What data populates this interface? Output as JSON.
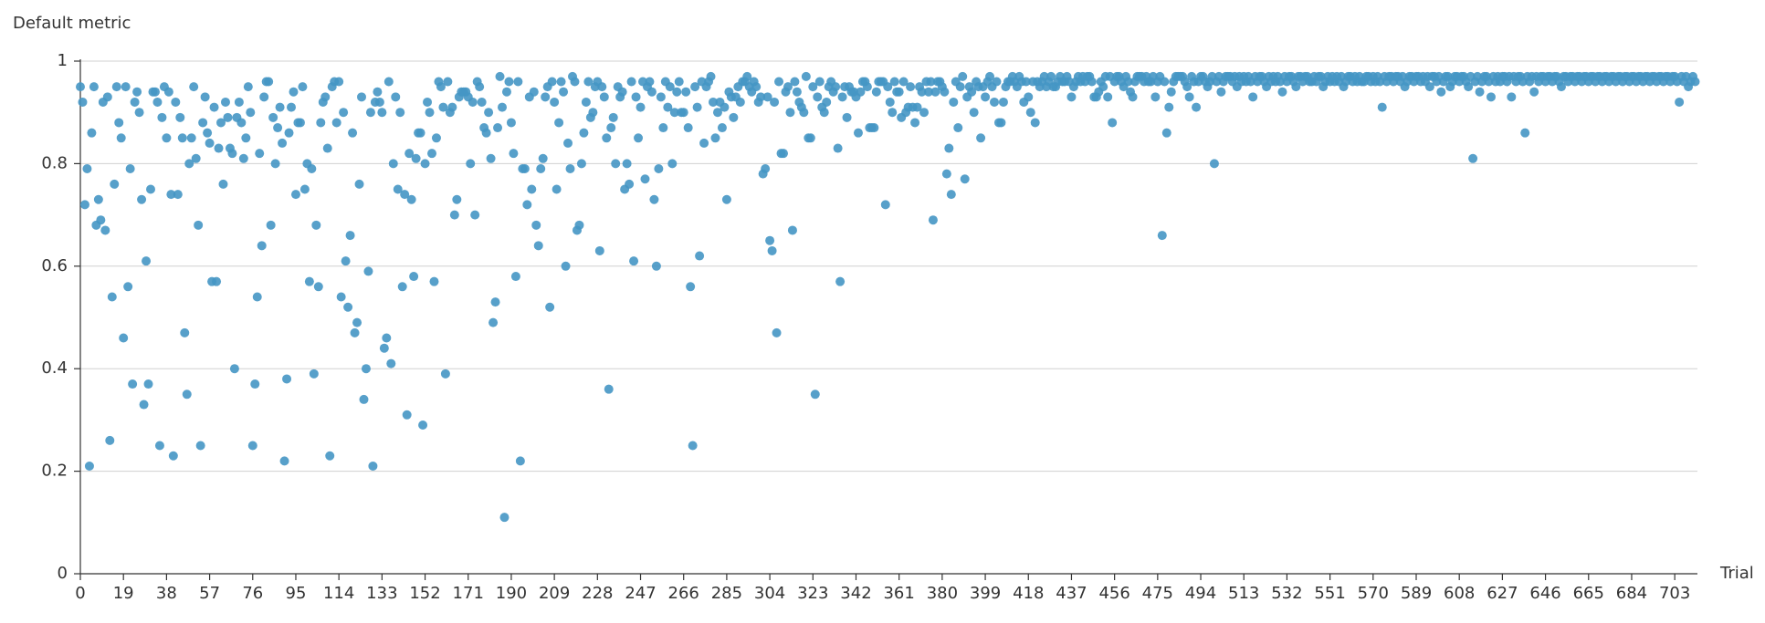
{
  "chart_data": {
    "type": "scatter",
    "y_label": "Default metric",
    "x_label": "Trial",
    "color": "#4596c4",
    "grid": true,
    "xlim": [
      0,
      713
    ],
    "ylim": [
      0,
      1
    ],
    "xticks": [
      0,
      19,
      38,
      57,
      76,
      95,
      114,
      133,
      152,
      171,
      190,
      209,
      228,
      247,
      266,
      285,
      304,
      323,
      342,
      361,
      380,
      399,
      418,
      437,
      456,
      475,
      494,
      513,
      532,
      551,
      570,
      589,
      608,
      627,
      646,
      665,
      684,
      703
    ],
    "yticks": [
      0,
      0.2,
      0.4,
      0.6,
      0.8,
      1
    ],
    "x": [
      0,
      1,
      2,
      3,
      4,
      5,
      6,
      7,
      8,
      9,
      10,
      11,
      12,
      13,
      14,
      15,
      16,
      17,
      18,
      19,
      20,
      21,
      22,
      23,
      24,
      25,
      26,
      27,
      28,
      29,
      30,
      31,
      32,
      33,
      34,
      35,
      36,
      37,
      38,
      39,
      40,
      41,
      42,
      43,
      44,
      45,
      46,
      47,
      48,
      49,
      50,
      51,
      52,
      53,
      54,
      55,
      56,
      57,
      58,
      59,
      60,
      61,
      62,
      63,
      64,
      65,
      66,
      67,
      68,
      69,
      70,
      71,
      72,
      73,
      74,
      75,
      76,
      77,
      78,
      79,
      80,
      81,
      82,
      83,
      84,
      85,
      86,
      87,
      88,
      89,
      90,
      91,
      92,
      93,
      94,
      95,
      96,
      97,
      98,
      99,
      100,
      101,
      102,
      103,
      104,
      105,
      106,
      107,
      108,
      109,
      110,
      111,
      112,
      113,
      114,
      115,
      116,
      117,
      118,
      119,
      120,
      121,
      122,
      123,
      124,
      125,
      126,
      127,
      128,
      129,
      130,
      131,
      132,
      133,
      134,
      135,
      136,
      137,
      138,
      139,
      140,
      141,
      142,
      143,
      144,
      145,
      146,
      147,
      148,
      149,
      150,
      151,
      152,
      153,
      154,
      155,
      156,
      157,
      158,
      159,
      160,
      161,
      162,
      163,
      164,
      165,
      166,
      167,
      168,
      169,
      170,
      171,
      172,
      173,
      174,
      175,
      176,
      177,
      178,
      179,
      180,
      181,
      182,
      183,
      184,
      185,
      186,
      187,
      188,
      189,
      190,
      191,
      192,
      193,
      194,
      195,
      196,
      197,
      198,
      199,
      200,
      201,
      202,
      203,
      204,
      205,
      206,
      207,
      208,
      209,
      210,
      211,
      212,
      213,
      214,
      215,
      216,
      217,
      218,
      219,
      220,
      221,
      222,
      223,
      224,
      225,
      226,
      227,
      228,
      229,
      230,
      231,
      232,
      233,
      234,
      235,
      236,
      237,
      238,
      239,
      240,
      241,
      242,
      243,
      244,
      245,
      246,
      247,
      248,
      249,
      250,
      251,
      252,
      253,
      254,
      255,
      256,
      257,
      258,
      259,
      260,
      261,
      262,
      263,
      264,
      265,
      266,
      267,
      268,
      269,
      270,
      271,
      272,
      273,
      274,
      275,
      276,
      277,
      278,
      279,
      280,
      281,
      282,
      283,
      284,
      285,
      286,
      287,
      288,
      289,
      290,
      291,
      292,
      293,
      294,
      295,
      296,
      297,
      298,
      299,
      300,
      301,
      302,
      303,
      304,
      305,
      306,
      307,
      308,
      309,
      310,
      311,
      312,
      313,
      314,
      315,
      316,
      317,
      318,
      319,
      320,
      321,
      322,
      323,
      324,
      325,
      326,
      327,
      328,
      329,
      330,
      331,
      332,
      333,
      334,
      335,
      336,
      337,
      338,
      339,
      340,
      341,
      342,
      343,
      344,
      345,
      346,
      347,
      348,
      349,
      350,
      351,
      352,
      353,
      354,
      355,
      356,
      357,
      358,
      359,
      360,
      361,
      362,
      363,
      364,
      365,
      366,
      367,
      368,
      369,
      370,
      371,
      372,
      373,
      374,
      375,
      376,
      377,
      378,
      379,
      380,
      381,
      382,
      383,
      384,
      385,
      386,
      387,
      388,
      389,
      390,
      391,
      392,
      393,
      394,
      395,
      396,
      397,
      398,
      399,
      400,
      401,
      402,
      403,
      404,
      405,
      406,
      407,
      408,
      409,
      410,
      411,
      412,
      413,
      414,
      415,
      416,
      417,
      418,
      419,
      420,
      421,
      422,
      423,
      424,
      425,
      426,
      427,
      428,
      429,
      430,
      431,
      432,
      433,
      434,
      435,
      436,
      437,
      438,
      439,
      440,
      441,
      442,
      443,
      444,
      445,
      446,
      447,
      448,
      449,
      450,
      451,
      452,
      453,
      454,
      455,
      456,
      457,
      458,
      459,
      460,
      461,
      462,
      463,
      464,
      465,
      466,
      467,
      468,
      469,
      470,
      471,
      472,
      473,
      474,
      475,
      476,
      477,
      478,
      479,
      480,
      481,
      482,
      483,
      484,
      485,
      486,
      487,
      488,
      489,
      490,
      491,
      492,
      493,
      494,
      495,
      496,
      497,
      498,
      499,
      500,
      501,
      502,
      503,
      504,
      505,
      506,
      507,
      508,
      509,
      510,
      511,
      512,
      513,
      514,
      515,
      516,
      517,
      518,
      519,
      520,
      521,
      522,
      523,
      524,
      525,
      526,
      527,
      528,
      529,
      530,
      531,
      532,
      533,
      534,
      535,
      536,
      537,
      538,
      539,
      540,
      541,
      542,
      543,
      544,
      545,
      546,
      547,
      548,
      549,
      550,
      551,
      552,
      553,
      554,
      555,
      556,
      557,
      558,
      559,
      560,
      561,
      562,
      563,
      564,
      565,
      566,
      567,
      568,
      569,
      570,
      571,
      572,
      573,
      574,
      575,
      576,
      577,
      578,
      579,
      580,
      581,
      582,
      583,
      584,
      585,
      586,
      587,
      588,
      589,
      590,
      591,
      592,
      593,
      594,
      595,
      596,
      597,
      598,
      599,
      600,
      601,
      602,
      603,
      604,
      605,
      606,
      607,
      608,
      609,
      610,
      611,
      612,
      613,
      614,
      615,
      616,
      617,
      618,
      619,
      620,
      621,
      622,
      623,
      624,
      625,
      626,
      627,
      628,
      629,
      630,
      631,
      632,
      633,
      634,
      635,
      636,
      637,
      638,
      639,
      640,
      641,
      642,
      643,
      644,
      645,
      646,
      647,
      648,
      649,
      650,
      651,
      652,
      653,
      654,
      655,
      656,
      657,
      658,
      659,
      660,
      661,
      662,
      663,
      664,
      665,
      666,
      667,
      668,
      669,
      670,
      671,
      672,
      673,
      674,
      675,
      676,
      677,
      678,
      679,
      680,
      681,
      682,
      683,
      684,
      685,
      686,
      687,
      688,
      689,
      690,
      691,
      692,
      693,
      694,
      695,
      696,
      697,
      698,
      699,
      700,
      701,
      702,
      703,
      704,
      705,
      706,
      707,
      708,
      709,
      710,
      711,
      712
    ],
    "values": [
      0.95,
      0.92,
      0.72,
      0.79,
      0.21,
      0.86,
      0.95,
      0.68,
      0.73,
      0.69,
      0.92,
      0.67,
      0.93,
      0.26,
      0.54,
      0.76,
      0.95,
      0.88,
      0.85,
      0.46,
      0.95,
      0.56,
      0.79,
      0.37,
      0.92,
      0.94,
      0.9,
      0.73,
      0.33,
      0.61,
      0.37,
      0.75,
      0.94,
      0.94,
      0.92,
      0.25,
      0.89,
      0.95,
      0.85,
      0.94,
      0.74,
      0.23,
      0.92,
      0.74,
      0.89,
      0.85,
      0.47,
      0.35,
      0.8,
      0.85,
      0.95,
      0.81,
      0.68,
      0.25,
      0.88,
      0.93,
      0.86,
      0.84,
      0.57,
      0.91,
      0.57,
      0.83,
      0.88,
      0.76,
      0.92,
      0.89,
      0.83,
      0.82,
      0.4,
      0.89,
      0.92,
      0.88,
      0.81,
      0.85,
      0.95,
      0.9,
      0.25,
      0.37,
      0.54,
      0.82,
      0.64,
      0.93,
      0.96,
      0.96,
      0.68,
      0.89,
      0.8,
      0.87,
      0.91,
      0.84,
      0.22,
      0.38,
      0.86,
      0.91,
      0.94,
      0.74,
      0.88,
      0.88,
      0.95,
      0.75,
      0.8,
      0.57,
      0.79,
      0.39,
      0.68,
      0.56,
      0.88,
      0.92,
      0.93,
      0.83,
      0.23,
      0.95,
      0.96,
      0.88,
      0.96,
      0.54,
      0.9,
      0.61,
      0.52,
      0.66,
      0.86,
      0.47,
      0.49,
      0.76,
      0.93,
      0.34,
      0.4,
      0.59,
      0.9,
      0.21,
      0.92,
      0.94,
      0.92,
      0.9,
      0.44,
      0.46,
      0.96,
      0.41,
      0.8,
      0.93,
      0.75,
      0.9,
      0.56,
      0.74,
      0.31,
      0.82,
      0.73,
      0.58,
      0.81,
      0.86,
      0.86,
      0.29,
      0.8,
      0.92,
      0.9,
      0.82,
      0.57,
      0.85,
      0.96,
      0.95,
      0.91,
      0.39,
      0.96,
      0.9,
      0.91,
      0.7,
      0.73,
      0.93,
      0.94,
      0.94,
      0.94,
      0.93,
      0.8,
      0.92,
      0.7,
      0.96,
      0.95,
      0.92,
      0.87,
      0.86,
      0.9,
      0.81,
      0.49,
      0.53,
      0.87,
      0.97,
      0.91,
      0.11,
      0.94,
      0.96,
      0.88,
      0.82,
      0.58,
      0.96,
      0.22,
      0.79,
      0.79,
      0.72,
      0.93,
      0.75,
      0.94,
      0.68,
      0.64,
      0.79,
      0.81,
      0.93,
      0.95,
      0.52,
      0.96,
      0.92,
      0.75,
      0.88,
      0.96,
      0.94,
      0.6,
      0.84,
      0.79,
      0.97,
      0.96,
      0.67,
      0.68,
      0.8,
      0.86,
      0.92,
      0.96,
      0.89,
      0.9,
      0.95,
      0.96,
      0.63,
      0.95,
      0.93,
      0.85,
      0.36,
      0.87,
      0.89,
      0.8,
      0.95,
      0.93,
      0.94,
      0.75,
      0.8,
      0.76,
      0.96,
      0.61,
      0.93,
      0.85,
      0.91,
      0.96,
      0.77,
      0.95,
      0.96,
      0.94,
      0.73,
      0.6,
      0.79,
      0.93,
      0.87,
      0.96,
      0.91,
      0.95,
      0.8,
      0.9,
      0.94,
      0.96,
      0.9,
      0.9,
      0.94,
      0.87,
      0.56,
      0.25,
      0.95,
      0.91,
      0.62,
      0.96,
      0.84,
      0.95,
      0.96,
      0.97,
      0.92,
      0.85,
      0.9,
      0.92,
      0.87,
      0.91,
      0.73,
      0.94,
      0.93,
      0.89,
      0.93,
      0.95,
      0.92,
      0.96,
      0.96,
      0.97,
      0.95,
      0.94,
      0.96,
      0.95,
      0.92,
      0.93,
      0.78,
      0.79,
      0.93,
      0.65,
      0.63,
      0.92,
      0.47,
      0.96,
      0.82,
      0.82,
      0.94,
      0.95,
      0.9,
      0.67,
      0.96,
      0.94,
      0.92,
      0.91,
      0.9,
      0.97,
      0.85,
      0.85,
      0.95,
      0.35,
      0.93,
      0.96,
      0.91,
      0.9,
      0.92,
      0.95,
      0.96,
      0.94,
      0.95,
      0.83,
      0.57,
      0.93,
      0.95,
      0.89,
      0.95,
      0.94,
      0.94,
      0.93,
      0.86,
      0.94,
      0.96,
      0.96,
      0.95,
      0.87,
      0.87,
      0.87,
      0.94,
      0.96,
      0.96,
      0.96,
      0.72,
      0.95,
      0.92,
      0.9,
      0.96,
      0.94,
      0.94,
      0.89,
      0.96,
      0.9,
      0.91,
      0.95,
      0.91,
      0.88,
      0.91,
      0.95,
      0.94,
      0.9,
      0.96,
      0.94,
      0.96,
      0.69,
      0.94,
      0.96,
      0.96,
      0.95,
      0.94,
      0.78,
      0.83,
      0.74,
      0.92,
      0.96,
      0.87,
      0.95,
      0.97,
      0.77,
      0.93,
      0.95,
      0.94,
      0.9,
      0.96,
      0.95,
      0.85,
      0.95,
      0.93,
      0.96,
      0.97,
      0.95,
      0.92,
      0.96,
      0.88,
      0.88,
      0.92,
      0.95,
      0.96,
      0.96,
      0.97,
      0.96,
      0.95,
      0.97,
      0.96,
      0.92,
      0.96,
      0.93,
      0.9,
      0.96,
      0.88,
      0.96,
      0.95,
      0.96,
      0.97,
      0.95,
      0.96,
      0.97,
      0.95,
      0.95,
      0.96,
      0.97,
      0.96,
      0.96,
      0.97,
      0.96,
      0.93,
      0.95,
      0.96,
      0.97,
      0.96,
      0.97,
      0.96,
      0.97,
      0.97,
      0.96,
      0.93,
      0.93,
      0.94,
      0.96,
      0.95,
      0.97,
      0.93,
      0.97,
      0.88,
      0.96,
      0.97,
      0.97,
      0.96,
      0.95,
      0.97,
      0.96,
      0.94,
      0.93,
      0.96,
      0.97,
      0.97,
      0.97,
      0.96,
      0.97,
      0.96,
      0.96,
      0.97,
      0.93,
      0.96,
      0.97,
      0.66,
      0.96,
      0.86,
      0.91,
      0.94,
      0.96,
      0.97,
      0.97,
      0.97,
      0.97,
      0.96,
      0.95,
      0.93,
      0.97,
      0.96,
      0.91,
      0.96,
      0.97,
      0.97,
      0.96,
      0.95,
      0.96,
      0.97,
      0.8,
      0.96,
      0.97,
      0.94,
      0.96,
      0.97,
      0.97,
      0.97,
      0.96,
      0.97,
      0.95,
      0.97,
      0.96,
      0.97,
      0.96,
      0.97,
      0.96,
      0.93,
      0.97,
      0.96,
      0.97,
      0.97,
      0.96,
      0.95,
      0.97,
      0.96,
      0.97,
      0.96,
      0.97,
      0.96,
      0.94,
      0.97,
      0.96,
      0.97,
      0.97,
      0.96,
      0.95,
      0.97,
      0.97,
      0.96,
      0.97,
      0.97,
      0.96,
      0.96,
      0.97,
      0.96,
      0.97,
      0.97,
      0.95,
      0.96,
      0.97,
      0.96,
      0.97,
      0.96,
      0.97,
      0.96,
      0.97,
      0.95,
      0.96,
      0.97,
      0.97,
      0.96,
      0.97,
      0.96,
      0.97,
      0.96,
      0.96,
      0.97,
      0.97,
      0.96,
      0.97,
      0.96,
      0.97,
      0.96,
      0.91,
      0.97,
      0.96,
      0.97,
      0.97,
      0.96,
      0.97,
      0.97,
      0.96,
      0.97,
      0.95,
      0.96,
      0.97,
      0.97,
      0.96,
      0.97,
      0.97,
      0.96,
      0.97,
      0.96,
      0.97,
      0.95,
      0.97,
      0.97,
      0.96,
      0.97,
      0.94,
      0.96,
      0.97,
      0.97,
      0.95,
      0.96,
      0.97,
      0.97,
      0.96,
      0.97,
      0.97,
      0.96,
      0.95,
      0.97,
      0.81,
      0.96,
      0.97,
      0.94,
      0.96,
      0.97,
      0.97,
      0.96,
      0.93,
      0.97,
      0.96,
      0.97,
      0.96,
      0.97,
      0.97,
      0.96,
      0.97,
      0.93,
      0.97,
      0.96,
      0.97,
      0.97,
      0.96,
      0.86,
      0.97,
      0.96,
      0.97,
      0.94,
      0.97,
      0.96,
      0.97,
      0.97,
      0.96,
      0.97,
      0.97,
      0.96,
      0.97,
      0.97,
      0.96,
      0.95,
      0.97,
      0.97,
      0.96,
      0.97,
      0.97,
      0.96,
      0.97,
      0.97,
      0.96,
      0.97,
      0.97,
      0.96,
      0.97,
      0.97,
      0.96,
      0.97,
      0.97,
      0.96,
      0.97,
      0.97,
      0.96,
      0.97,
      0.97,
      0.96,
      0.97,
      0.97,
      0.96,
      0.97,
      0.97,
      0.96,
      0.97,
      0.97,
      0.96,
      0.97,
      0.97,
      0.96,
      0.97,
      0.97,
      0.96,
      0.97,
      0.97,
      0.96,
      0.97,
      0.97,
      0.96,
      0.97,
      0.97,
      0.96,
      0.97,
      0.97,
      0.96,
      0.92,
      0.97,
      0.96,
      0.97,
      0.95,
      0.96,
      0.97,
      0.96
    ]
  }
}
